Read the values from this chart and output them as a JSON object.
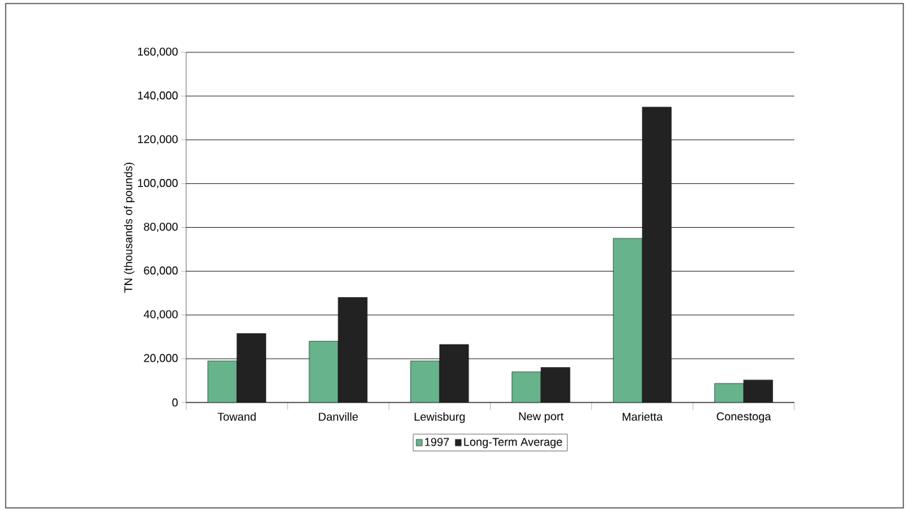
{
  "chart_data": {
    "type": "bar",
    "ylabel": "TN (thousands of pounds)",
    "categories": [
      "Towand",
      "Danville",
      "Lewisburg",
      "New port",
      "Marietta",
      "Conestoga"
    ],
    "series": [
      {
        "name": "1997",
        "color": "#66b38c",
        "values": [
          19000,
          28000,
          19000,
          14000,
          75000,
          8700
        ]
      },
      {
        "name": "Long-Term Average",
        "color": "#222222",
        "values": [
          31500,
          48000,
          26500,
          16000,
          135000,
          10300
        ]
      }
    ],
    "ylim": [
      0,
      160000
    ],
    "yticks": [
      {
        "value": 0,
        "label": "0"
      },
      {
        "value": 20000,
        "label": "20,000"
      },
      {
        "value": 40000,
        "label": "40,000"
      },
      {
        "value": 60000,
        "label": "60,000"
      },
      {
        "value": 80000,
        "label": "80,000"
      },
      {
        "value": 100000,
        "label": "100,000"
      },
      {
        "value": 120000,
        "label": "120,000"
      },
      {
        "value": 140000,
        "label": "140,000"
      },
      {
        "value": 160000,
        "label": "160,000"
      }
    ],
    "grid": "y",
    "legend": "bottom"
  }
}
